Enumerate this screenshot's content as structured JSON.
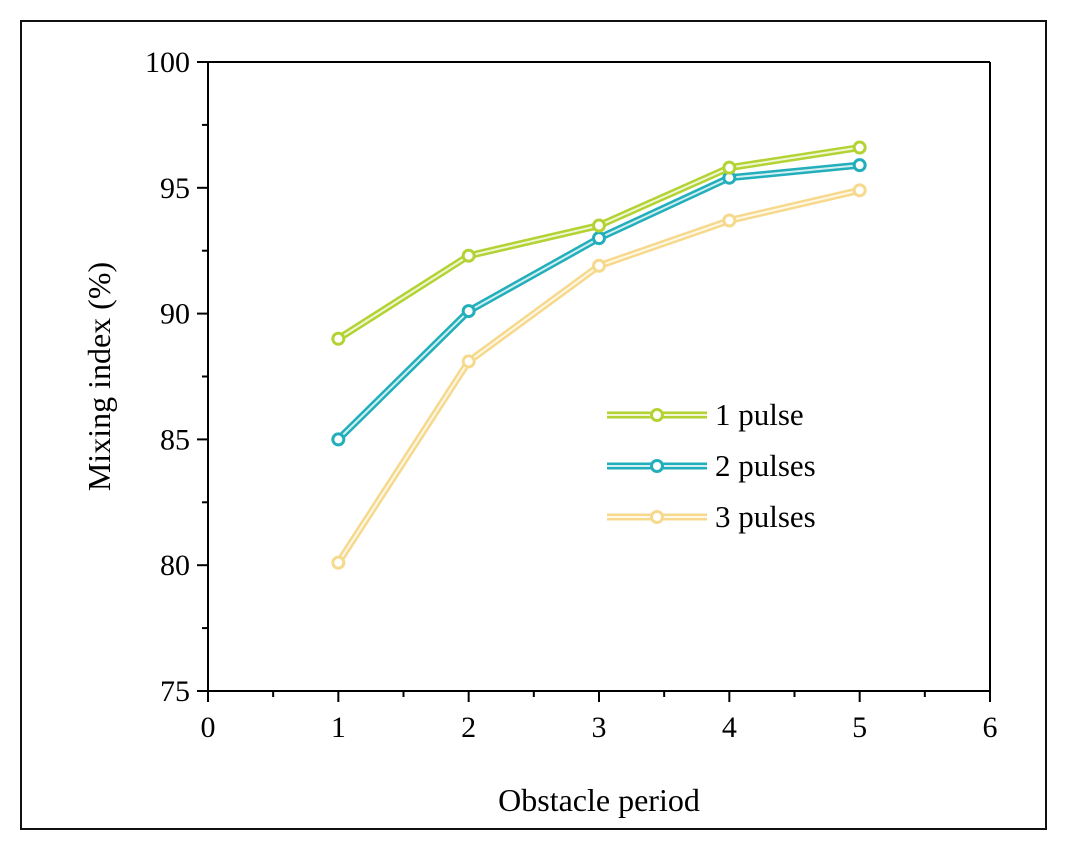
{
  "chart_data": {
    "type": "line",
    "xlabel": "Obstacle period",
    "ylabel": "Mixing index (%)",
    "xlim": [
      0,
      6
    ],
    "ylim": [
      75,
      100
    ],
    "x_ticks": [
      "0",
      "1",
      "2",
      "3",
      "4",
      "5",
      "6"
    ],
    "y_ticks": [
      "75",
      "80",
      "85",
      "90",
      "95",
      "100"
    ],
    "x": [
      1,
      2,
      3,
      4,
      5
    ],
    "grid": false,
    "legend_position": "lower-right",
    "series": [
      {
        "name": "1 pulse",
        "color": "#b3d334",
        "values": [
          89.0,
          92.3,
          93.5,
          95.8,
          96.6
        ]
      },
      {
        "name": "2 pulses",
        "color": "#22aebb",
        "values": [
          85.0,
          90.1,
          93.0,
          95.4,
          95.9
        ]
      },
      {
        "name": "3 pulses",
        "color": "#f6d98c",
        "values": [
          80.1,
          88.1,
          91.9,
          93.7,
          94.9
        ]
      }
    ]
  }
}
